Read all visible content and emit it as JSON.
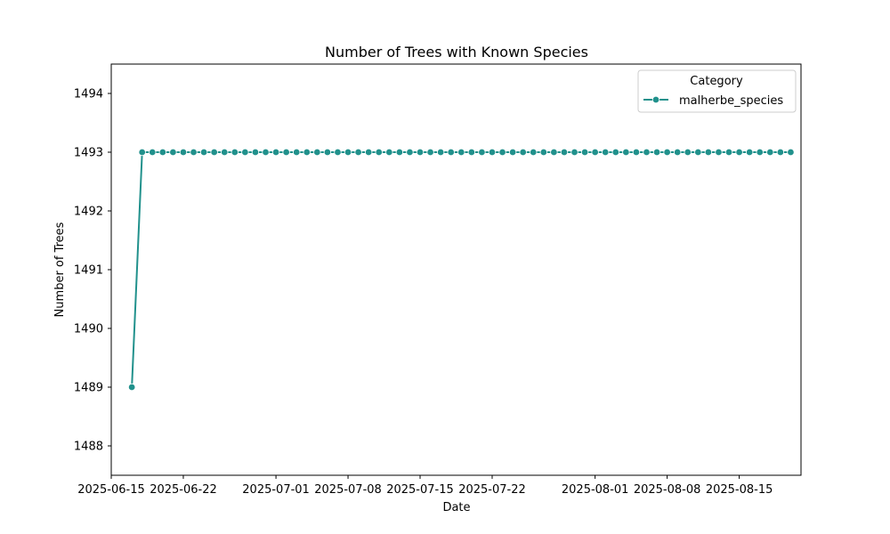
{
  "chart_data": {
    "type": "line",
    "title": "Number of Trees with Known Species",
    "xlabel": "Date",
    "ylabel": "Number of Trees",
    "grid": false,
    "legend": {
      "title": "Category",
      "placement": "top-right"
    },
    "xlim": [
      "2025-06-15",
      "2025-08-21"
    ],
    "ylim": [
      1487.5,
      1494.5
    ],
    "x_ticks": [
      "2025-06-15",
      "2025-06-22",
      "2025-07-01",
      "2025-07-08",
      "2025-07-15",
      "2025-07-22",
      "2025-08-01",
      "2025-08-08",
      "2025-08-15"
    ],
    "y_ticks": [
      1488,
      1489,
      1490,
      1491,
      1492,
      1493,
      1494
    ],
    "series": [
      {
        "name": "malherbe_species",
        "color": "#21918c",
        "marker": "circle",
        "points": [
          [
            "2025-06-17",
            1489
          ],
          [
            "2025-06-18",
            1493
          ],
          [
            "2025-06-19",
            1493
          ],
          [
            "2025-06-20",
            1493
          ],
          [
            "2025-06-21",
            1493
          ],
          [
            "2025-06-22",
            1493
          ],
          [
            "2025-06-23",
            1493
          ],
          [
            "2025-06-24",
            1493
          ],
          [
            "2025-06-25",
            1493
          ],
          [
            "2025-06-26",
            1493
          ],
          [
            "2025-06-27",
            1493
          ],
          [
            "2025-06-28",
            1493
          ],
          [
            "2025-06-29",
            1493
          ],
          [
            "2025-06-30",
            1493
          ],
          [
            "2025-07-01",
            1493
          ],
          [
            "2025-07-02",
            1493
          ],
          [
            "2025-07-03",
            1493
          ],
          [
            "2025-07-04",
            1493
          ],
          [
            "2025-07-05",
            1493
          ],
          [
            "2025-07-06",
            1493
          ],
          [
            "2025-07-07",
            1493
          ],
          [
            "2025-07-08",
            1493
          ],
          [
            "2025-07-09",
            1493
          ],
          [
            "2025-07-10",
            1493
          ],
          [
            "2025-07-11",
            1493
          ],
          [
            "2025-07-12",
            1493
          ],
          [
            "2025-07-13",
            1493
          ],
          [
            "2025-07-14",
            1493
          ],
          [
            "2025-07-15",
            1493
          ],
          [
            "2025-07-16",
            1493
          ],
          [
            "2025-07-17",
            1493
          ],
          [
            "2025-07-18",
            1493
          ],
          [
            "2025-07-19",
            1493
          ],
          [
            "2025-07-20",
            1493
          ],
          [
            "2025-07-21",
            1493
          ],
          [
            "2025-07-22",
            1493
          ],
          [
            "2025-07-23",
            1493
          ],
          [
            "2025-07-24",
            1493
          ],
          [
            "2025-07-25",
            1493
          ],
          [
            "2025-07-26",
            1493
          ],
          [
            "2025-07-27",
            1493
          ],
          [
            "2025-07-28",
            1493
          ],
          [
            "2025-07-29",
            1493
          ],
          [
            "2025-07-30",
            1493
          ],
          [
            "2025-07-31",
            1493
          ],
          [
            "2025-08-01",
            1493
          ],
          [
            "2025-08-02",
            1493
          ],
          [
            "2025-08-03",
            1493
          ],
          [
            "2025-08-04",
            1493
          ],
          [
            "2025-08-05",
            1493
          ],
          [
            "2025-08-06",
            1493
          ],
          [
            "2025-08-07",
            1493
          ],
          [
            "2025-08-08",
            1493
          ],
          [
            "2025-08-09",
            1493
          ],
          [
            "2025-08-10",
            1493
          ],
          [
            "2025-08-11",
            1493
          ],
          [
            "2025-08-12",
            1493
          ],
          [
            "2025-08-13",
            1493
          ],
          [
            "2025-08-14",
            1493
          ],
          [
            "2025-08-15",
            1493
          ],
          [
            "2025-08-16",
            1493
          ],
          [
            "2025-08-17",
            1493
          ],
          [
            "2025-08-18",
            1493
          ],
          [
            "2025-08-19",
            1493
          ],
          [
            "2025-08-20",
            1493
          ]
        ]
      }
    ]
  }
}
